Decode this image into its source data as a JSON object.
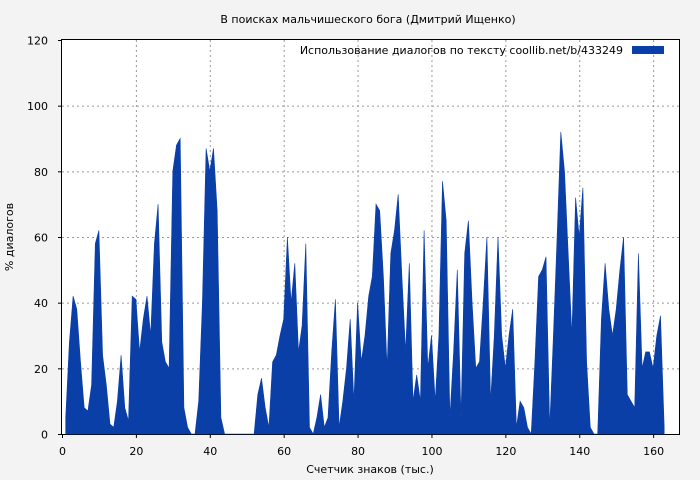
{
  "chart_data": {
    "type": "area",
    "title": "В поисках мальчишеского бога (Дмитрий Ищенко)",
    "xlabel": "Счетчик знаков (тыс.)",
    "ylabel": "% диалогов",
    "xlim": [
      0,
      167
    ],
    "ylim": [
      0,
      120
    ],
    "xticks": [
      0,
      20,
      40,
      60,
      80,
      100,
      120,
      140,
      160
    ],
    "yticks": [
      0,
      20,
      40,
      60,
      80,
      100,
      120
    ],
    "grid": true,
    "legend_position": "top-right",
    "colors": {
      "series": "#0b3fa8"
    },
    "series": [
      {
        "name": "Использование диалогов по тексту  coollib.net/b/433249",
        "x": [
          1,
          2,
          3,
          4,
          5,
          6,
          7,
          8,
          9,
          10,
          11,
          12,
          13,
          14,
          15,
          16,
          17,
          18,
          19,
          20,
          21,
          22,
          23,
          24,
          25,
          26,
          27,
          28,
          29,
          30,
          31,
          32,
          33,
          34,
          35,
          36,
          37,
          38,
          39,
          40,
          41,
          42,
          43,
          44,
          45,
          46,
          47,
          48,
          49,
          50,
          51,
          52,
          53,
          54,
          55,
          56,
          57,
          58,
          59,
          60,
          61,
          62,
          63,
          64,
          65,
          66,
          67,
          68,
          69,
          70,
          71,
          72,
          73,
          74,
          75,
          76,
          77,
          78,
          79,
          80,
          81,
          82,
          83,
          84,
          85,
          86,
          87,
          88,
          89,
          90,
          91,
          92,
          93,
          94,
          95,
          96,
          97,
          98,
          99,
          100,
          101,
          102,
          103,
          104,
          105,
          106,
          107,
          108,
          109,
          110,
          111,
          112,
          113,
          114,
          115,
          116,
          117,
          118,
          119,
          120,
          121,
          122,
          123,
          124,
          125,
          126,
          127,
          128,
          129,
          130,
          131,
          132,
          133,
          134,
          135,
          136,
          137,
          138,
          139,
          140,
          141,
          142,
          143,
          144,
          145,
          146,
          147,
          148,
          149,
          150,
          151,
          152,
          153,
          154,
          155,
          156,
          157,
          158,
          159,
          160,
          161,
          162,
          163
        ],
        "values": [
          5,
          28,
          42,
          38,
          22,
          8,
          7,
          15,
          58,
          62,
          24,
          15,
          3,
          2,
          10,
          24,
          8,
          4,
          42,
          41,
          25,
          35,
          42,
          30,
          58,
          70,
          28,
          22,
          20,
          80,
          88,
          90,
          8,
          2,
          0,
          0,
          10,
          40,
          87,
          80,
          87,
          68,
          5,
          0,
          0,
          0,
          0,
          0,
          0,
          0,
          0,
          0,
          12,
          17,
          8,
          2,
          22,
          24,
          30,
          35,
          60,
          40,
          52,
          25,
          33,
          58,
          2,
          0,
          5,
          12,
          2,
          5,
          25,
          41,
          2,
          10,
          20,
          35,
          10,
          40,
          22,
          30,
          42,
          48,
          70,
          68,
          48,
          20,
          55,
          62,
          73,
          48,
          25,
          52,
          10,
          18,
          10,
          62,
          20,
          30,
          10,
          30,
          77,
          65,
          5,
          25,
          50,
          5,
          55,
          65,
          40,
          20,
          22,
          40,
          60,
          10,
          30,
          60,
          30,
          20,
          30,
          38,
          2,
          10,
          8,
          2,
          0,
          22,
          48,
          50,
          54,
          2,
          30,
          60,
          92,
          80,
          55,
          30,
          72,
          60,
          75,
          22,
          2,
          0,
          0,
          35,
          52,
          38,
          30,
          38,
          50,
          60,
          12,
          10,
          8,
          55,
          20,
          25,
          25,
          20,
          30,
          36,
          2
        ]
      }
    ]
  }
}
